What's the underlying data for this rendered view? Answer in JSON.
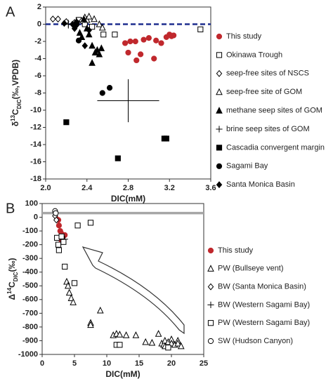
{
  "chart_data": [
    {
      "type": "scatter",
      "panel": "A",
      "xlabel": "DIC(mM)",
      "ylabel": [
        "δ",
        "13",
        "C",
        "DIC",
        "(‰,VPDB)"
      ],
      "xlim": [
        2.0,
        3.6
      ],
      "xticks": [
        {
          "value": 2.0,
          "label": "2.0"
        },
        2.4,
        2.8,
        3.2,
        3.6
      ],
      "ylim": [
        -18,
        2
      ],
      "yticks": [
        -18,
        -16,
        -14,
        -12,
        -10,
        -8,
        -6,
        -4,
        -2,
        0,
        2
      ],
      "reference_line": {
        "y": 0,
        "color": "#1f2f8f",
        "dashed": true
      },
      "series": [
        {
          "name": "This study",
          "color": "#c0282d",
          "marker": "circle",
          "filled": true,
          "x": [
            2.77,
            2.82,
            2.87,
            2.8,
            2.92,
            2.88,
            2.95,
            3.0,
            3.05,
            3.07,
            3.12,
            3.17,
            3.2,
            3.22,
            3.24
          ],
          "y": [
            -2.2,
            -2.0,
            -2.0,
            -3.3,
            -3.5,
            -4.2,
            -1.8,
            -1.6,
            -4.0,
            -1.9,
            -2.2,
            -1.5,
            -1.2,
            -1.4,
            -1.3
          ]
        },
        {
          "name": "Okinawa Trough",
          "color": "#000000",
          "marker": "square",
          "filled": false,
          "x": [
            2.32,
            2.38,
            2.45,
            2.56,
            2.67,
            3.5
          ],
          "y": [
            0.5,
            0.0,
            -0.3,
            -1.2,
            -1.2,
            -0.6
          ]
        },
        {
          "name": "seep-free sites of NSCS",
          "color": "#000000",
          "marker": "diamond",
          "filled": false,
          "x": [
            2.07,
            2.12,
            2.2,
            2.28,
            2.35
          ],
          "y": [
            0.6,
            0.6,
            0.3,
            0.2,
            0.4
          ]
        },
        {
          "name": "seep-free site of GOM",
          "color": "#000000",
          "marker": "triangle",
          "filled": false,
          "x": [
            2.38,
            2.4,
            2.42,
            2.47,
            2.52,
            2.55
          ],
          "y": [
            0.8,
            0.5,
            0.9,
            0.6,
            0.0,
            -0.4
          ]
        },
        {
          "name": "methane seep sites of GOM",
          "color": "#000000",
          "marker": "triangle",
          "filled": true,
          "x": [
            2.3,
            2.33,
            2.35,
            2.37,
            2.4,
            2.42,
            2.45,
            2.45,
            2.48,
            2.5,
            2.52,
            2.54
          ],
          "y": [
            0.3,
            -1.0,
            -1.5,
            0.6,
            -0.5,
            -1.2,
            -2.5,
            -4.5,
            -3.3,
            -3.0,
            -3.5,
            -2.8
          ]
        },
        {
          "name": "brine seep sites of GOM",
          "color": "#000000",
          "marker": "plus",
          "filled": true,
          "x": [
            2.22,
            2.8
          ],
          "y": [
            0.0,
            -8.9
          ],
          "xerr": [
            0.03,
            0.3
          ],
          "yerr": [
            0.5,
            2.5
          ]
        },
        {
          "name": "Cascadia convergent margin",
          "color": "#000000",
          "marker": "square",
          "filled": true,
          "x": [
            2.2,
            2.7,
            3.15,
            3.17
          ],
          "y": [
            -11.4,
            -15.6,
            -13.3,
            -13.3
          ]
        },
        {
          "name": "Sagami Bay",
          "color": "#000000",
          "marker": "circle",
          "filled": true,
          "x": [
            2.3,
            2.32,
            2.55,
            2.62
          ],
          "y": [
            0.2,
            -1.9,
            -8.0,
            -7.4
          ]
        },
        {
          "name": "Santa Monica Basin",
          "color": "#000000",
          "marker": "diamond",
          "filled": true,
          "x": [
            2.18,
            2.26,
            2.28,
            2.3,
            2.38,
            2.42
          ],
          "y": [
            0.1,
            0.0,
            -0.5,
            -0.1,
            -2.5,
            -0.7
          ]
        }
      ]
    },
    {
      "type": "scatter",
      "panel": "B",
      "xlabel": "DIC(mM)",
      "ylabel": [
        "Δ",
        "14",
        "C",
        "DIC",
        "(‰)"
      ],
      "xlim": [
        0,
        25
      ],
      "xticks": [
        0,
        5,
        10,
        15,
        20,
        25
      ],
      "ylim": [
        -1000,
        100
      ],
      "yticks": [
        -1000,
        -900,
        -800,
        -700,
        -600,
        -500,
        -400,
        -300,
        -200,
        -100,
        0,
        100
      ],
      "reference_line": {
        "y": 30,
        "color": "#a6a6a6",
        "dashed": false
      },
      "series": [
        {
          "name": "This study",
          "color": "#c0282d",
          "marker": "circle",
          "filled": true,
          "x": [
            2.3,
            2.6,
            2.8,
            3.0,
            3.2,
            3.5,
            3.0,
            2.5
          ],
          "y": [
            -15,
            -60,
            -100,
            -120,
            -145,
            -130,
            -170,
            -20
          ]
        },
        {
          "name": "PW (Bullseye vent)",
          "color": "#000000",
          "marker": "triangle",
          "filled": false,
          "x": [
            3.8,
            4.0,
            4.2,
            4.5,
            4.8,
            7.5,
            7.5,
            9,
            11,
            11.5,
            12,
            13,
            14.5,
            16,
            17,
            18,
            18.5,
            18.8,
            19,
            19,
            19.5,
            20,
            20,
            20.5,
            21,
            21,
            21.5
          ],
          "y": [
            -470,
            -500,
            -550,
            -590,
            -620,
            -770,
            -785,
            -680,
            -860,
            -850,
            -855,
            -860,
            -860,
            -910,
            -915,
            -850,
            -920,
            -930,
            -900,
            -940,
            -910,
            -890,
            -920,
            -930,
            -900,
            -920,
            -940
          ]
        },
        {
          "name": "BW (Santa Monica Basin)",
          "color": "#000000",
          "marker": "diamond",
          "filled": false,
          "x": [
            2.0,
            2.2
          ],
          "y": [
            10,
            -20
          ]
        },
        {
          "name": "BW (Western Sagami Bay)",
          "color": "#000000",
          "marker": "plus",
          "filled": true,
          "x": [
            3.5
          ],
          "y": [
            -160
          ]
        },
        {
          "name": "PW (Western Sagami Bay)",
          "color": "#000000",
          "marker": "square",
          "filled": false,
          "x": [
            2.3,
            2.5,
            2.6,
            3.0,
            3.3,
            3.5,
            5.0,
            5.5,
            7.5,
            11.5,
            12,
            19.5
          ],
          "y": [
            -150,
            -200,
            -240,
            -140,
            -180,
            -360,
            -480,
            -60,
            -40,
            -930,
            -930,
            -950
          ]
        },
        {
          "name": "SW (Hudson Canyon)",
          "color": "#000000",
          "marker": "circle",
          "filled": false,
          "x": [
            2.0,
            2.1
          ],
          "y": [
            45,
            30
          ]
        }
      ]
    }
  ]
}
